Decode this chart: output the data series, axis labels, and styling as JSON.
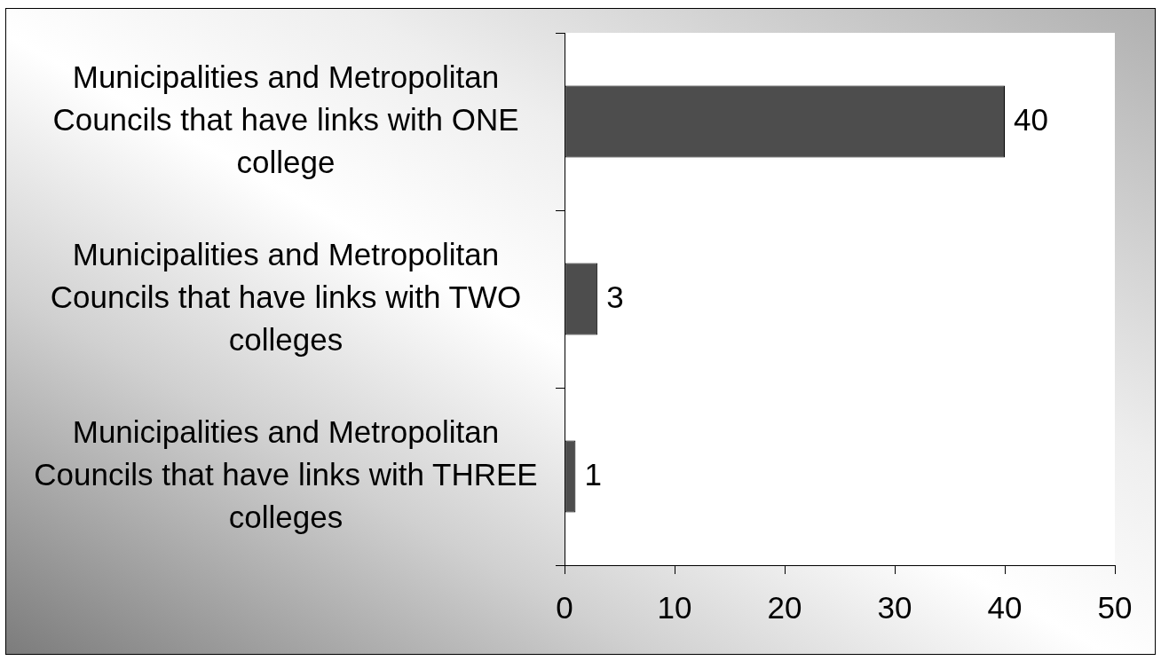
{
  "chart_data": {
    "type": "bar",
    "orientation": "horizontal",
    "categories": [
      "Municipalities and Metropolitan Councils that have links with ONE college",
      "Municipalities and Metropolitan Councils that have links with TWO colleges",
      "Municipalities and Metropolitan Councils that have links with THREE colleges"
    ],
    "values": [
      40,
      3,
      1
    ],
    "color": "#4d4d4d",
    "xlim": [
      0,
      50
    ],
    "xticks": [
      0,
      10,
      20,
      30,
      40,
      50
    ],
    "data_labels": true
  }
}
